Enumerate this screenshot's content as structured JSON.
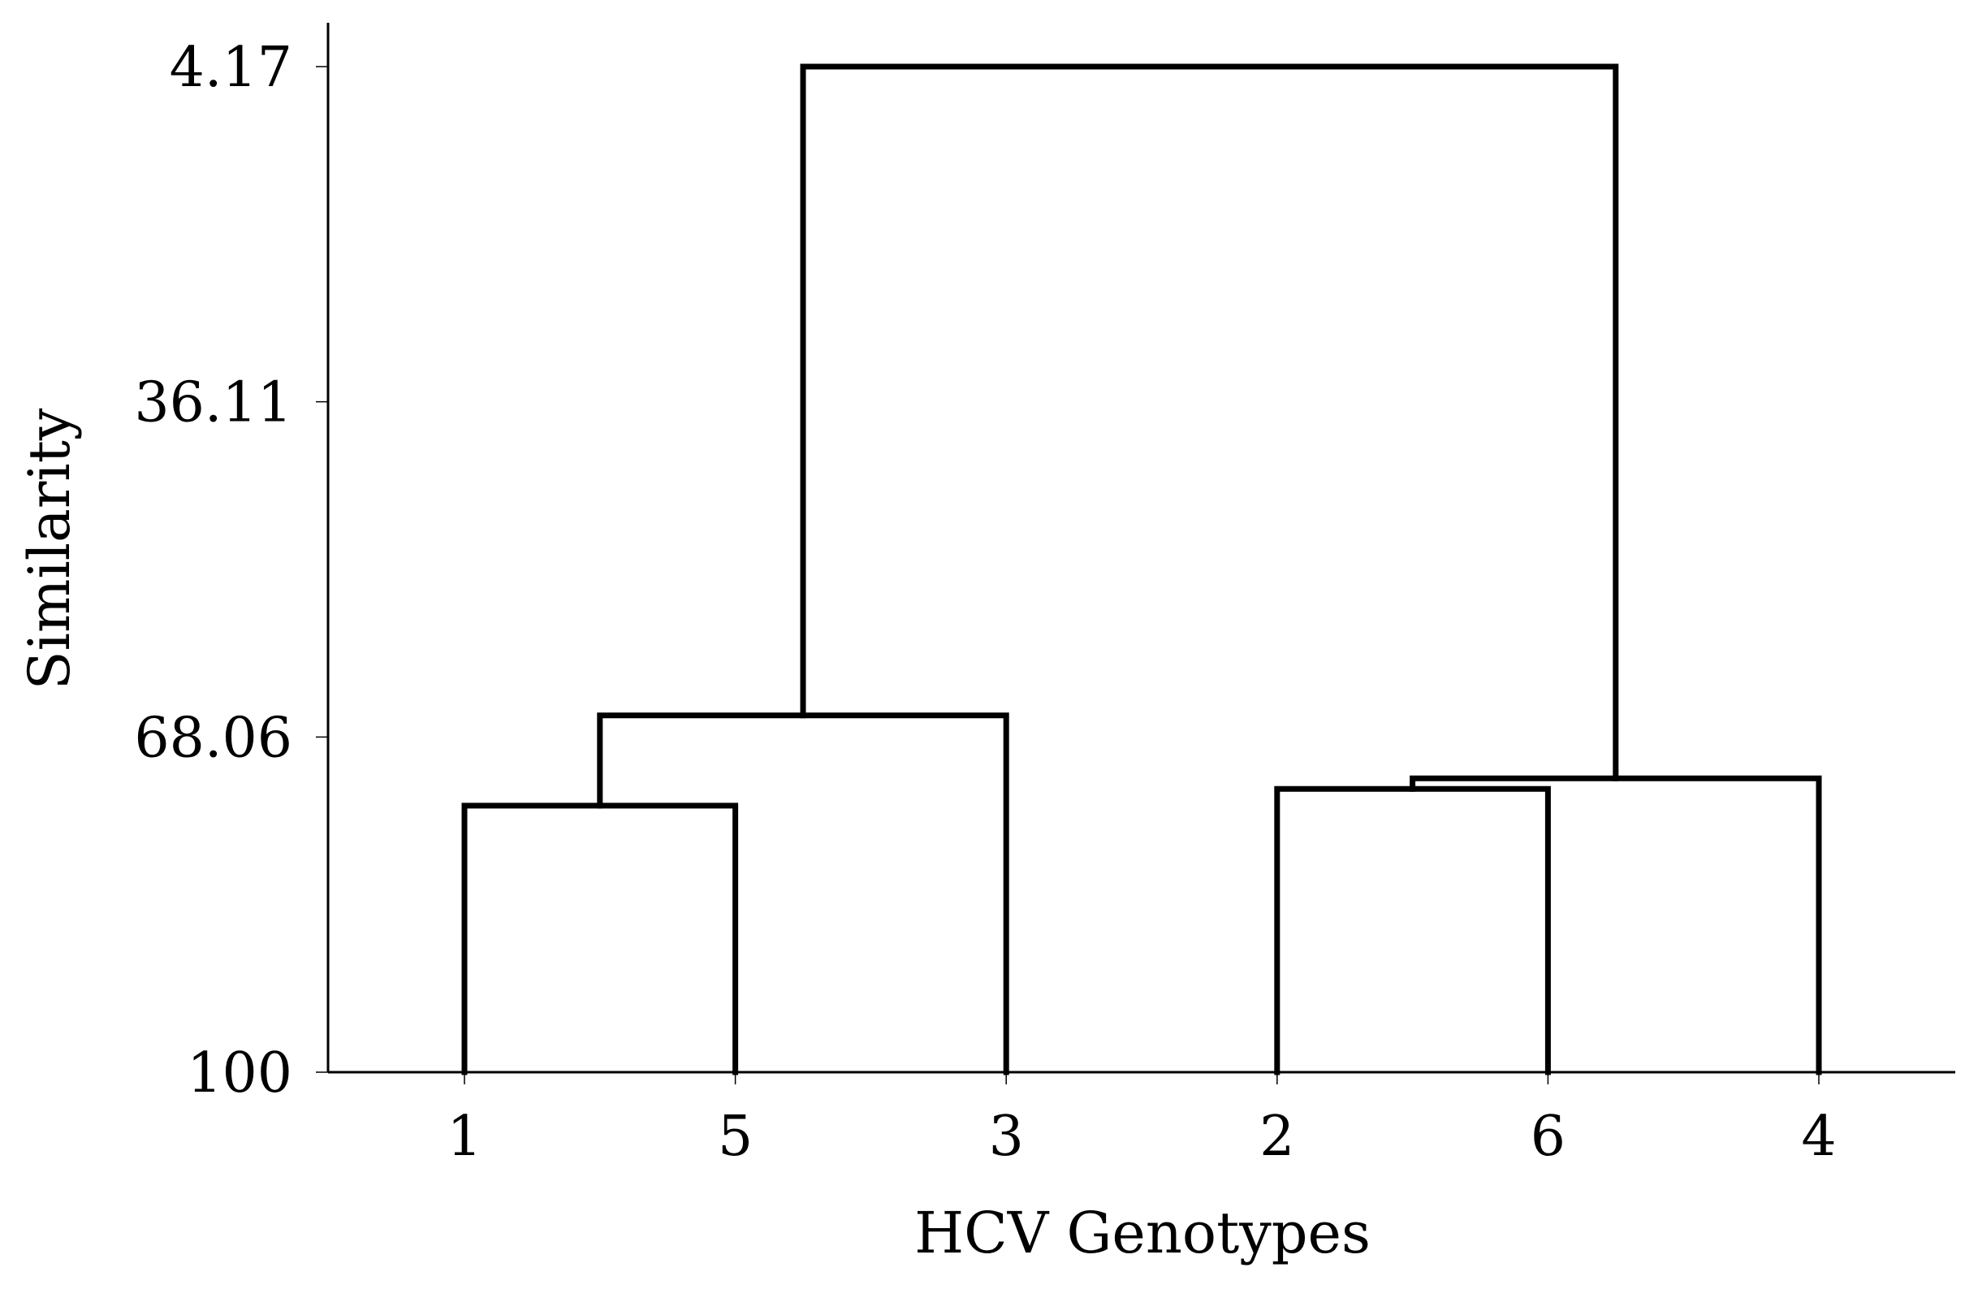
{
  "chart_data": {
    "type": "dendrogram",
    "xlabel": "HCV Genotypes",
    "ylabel": "Similarity",
    "leaves": [
      "1",
      "5",
      "3",
      "2",
      "6",
      "4"
    ],
    "y_ticks": [
      4.17,
      36.11,
      68.06,
      100
    ],
    "y_tick_labels": [
      "4.17",
      "36.11",
      "68.06",
      "100"
    ],
    "ylim": [
      4.17,
      100
    ],
    "y_inverted": true,
    "merges": [
      {
        "left": [
          "1"
        ],
        "right": [
          "5"
        ],
        "similarity": 74.6
      },
      {
        "left": [
          "1",
          "5"
        ],
        "right": [
          "3"
        ],
        "similarity": 66.0
      },
      {
        "left": [
          "2"
        ],
        "right": [
          "6"
        ],
        "similarity": 73.0
      },
      {
        "left": [
          "2",
          "6"
        ],
        "right": [
          "4"
        ],
        "similarity": 72.0
      },
      {
        "left": [
          "1",
          "5",
          "3"
        ],
        "right": [
          "2",
          "6",
          "4"
        ],
        "similarity": 4.17
      }
    ],
    "line_color": "#000000",
    "grid": false
  }
}
